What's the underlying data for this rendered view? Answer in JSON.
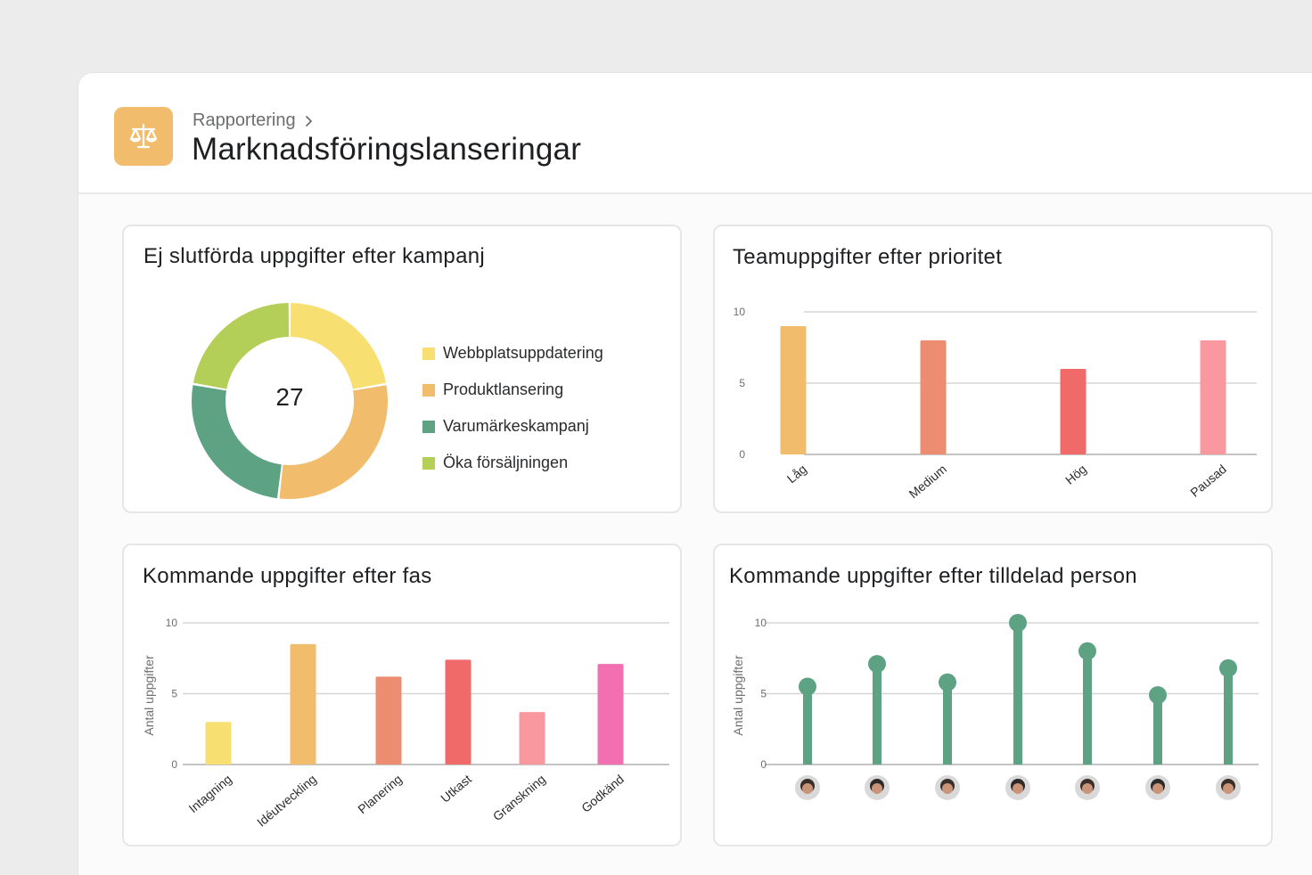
{
  "header": {
    "breadcrumb": "Rapportering",
    "title": "Marknadsföringslanseringar",
    "icon": "scales-icon",
    "icon_color": "#f1bd6c"
  },
  "charts": {
    "donut": {
      "title": "Ej slutförda uppgifter efter kampanj",
      "total": "27"
    },
    "priority": {
      "title": "Teamuppgifter efter prioritet"
    },
    "phase": {
      "title": "Kommande uppgifter efter fas"
    },
    "assignee": {
      "title": "Kommande uppgifter efter tilldelad person"
    }
  },
  "chart_data": [
    {
      "type": "pie",
      "title": "Ej slutförda uppgifter efter kampanj",
      "center_label": "27",
      "categories": [
        "Webbplatsuppdatering",
        "Produktlansering",
        "Varumärkeskampanj",
        "Öka försäljningen"
      ],
      "values": [
        6,
        8,
        7,
        6
      ],
      "colors": [
        "#f8df72",
        "#f1bd6c",
        "#5da283",
        "#b3cf57"
      ]
    },
    {
      "type": "bar",
      "title": "Teamuppgifter efter prioritet",
      "categories": [
        "Låg",
        "Medium",
        "Hög",
        "Pausad"
      ],
      "values": [
        9,
        8,
        6,
        8
      ],
      "colors": [
        "#f1bd6c",
        "#ec8d71",
        "#f06a6a",
        "#f9999f"
      ],
      "ylim": [
        0,
        10
      ],
      "yticks": [
        0,
        5,
        10
      ]
    },
    {
      "type": "bar",
      "title": "Kommande uppgifter efter fas",
      "ylabel": "Antal uppgifter",
      "categories": [
        "Intagning",
        "Idéutveckling",
        "Planering",
        "Utkast",
        "Granskning",
        "Godkänd"
      ],
      "values": [
        3,
        8.5,
        6.2,
        7.4,
        3.7,
        7.1
      ],
      "colors": [
        "#f8df72",
        "#f1bd6c",
        "#ec8d71",
        "#f06a6a",
        "#f9999f",
        "#f26fb2"
      ],
      "ylim": [
        0,
        10
      ],
      "yticks": [
        0,
        5,
        10
      ]
    },
    {
      "type": "bar",
      "title": "Kommande uppgifter efter tilldelad person",
      "ylabel": "Antal uppgifter",
      "categories": [
        "person-1",
        "person-2",
        "person-3",
        "person-4",
        "person-5",
        "person-6",
        "person-7"
      ],
      "values": [
        5.5,
        7.1,
        5.8,
        10,
        8,
        4.9,
        6.8
      ],
      "colors": [
        "#5da283"
      ],
      "ylim": [
        0,
        10
      ],
      "yticks": [
        0,
        5,
        10
      ]
    }
  ]
}
